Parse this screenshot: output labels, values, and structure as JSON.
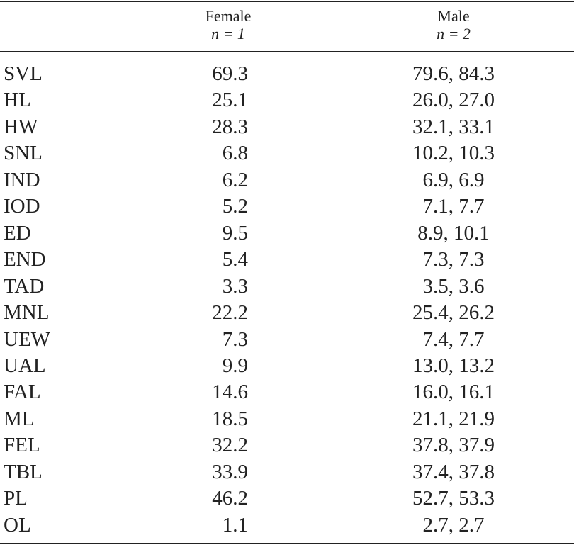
{
  "table": {
    "columns": [
      {
        "label": "Female",
        "n": "n = 1"
      },
      {
        "label": "Male",
        "n": "n = 2"
      }
    ],
    "rows": [
      [
        "SVL",
        "69.3",
        "79.6, 84.3"
      ],
      [
        "HL",
        "25.1",
        "26.0, 27.0"
      ],
      [
        "HW",
        "28.3",
        "32.1, 33.1"
      ],
      [
        "SNL",
        "6.8",
        "10.2, 10.3"
      ],
      [
        "IND",
        "6.2",
        "6.9, 6.9"
      ],
      [
        "IOD",
        "5.2",
        "7.1, 7.7"
      ],
      [
        "ED",
        "9.5",
        "8.9, 10.1"
      ],
      [
        "END",
        "5.4",
        "7.3, 7.3"
      ],
      [
        "TAD",
        "3.3",
        "3.5, 3.6"
      ],
      [
        "MNL",
        "22.2",
        "25.4, 26.2"
      ],
      [
        "UEW",
        "7.3",
        "7.4, 7.7"
      ],
      [
        "UAL",
        "9.9",
        "13.0, 13.2"
      ],
      [
        "FAL",
        "14.6",
        "16.0, 16.1"
      ],
      [
        "ML",
        "18.5",
        "21.1, 21.9"
      ],
      [
        "FEL",
        "32.2",
        "37.8, 37.9"
      ],
      [
        "TBL",
        "33.9",
        "37.4, 37.8"
      ],
      [
        "PL",
        "46.2",
        "52.7, 53.3"
      ],
      [
        "OL",
        "1.1",
        "2.7, 2.7"
      ]
    ]
  }
}
